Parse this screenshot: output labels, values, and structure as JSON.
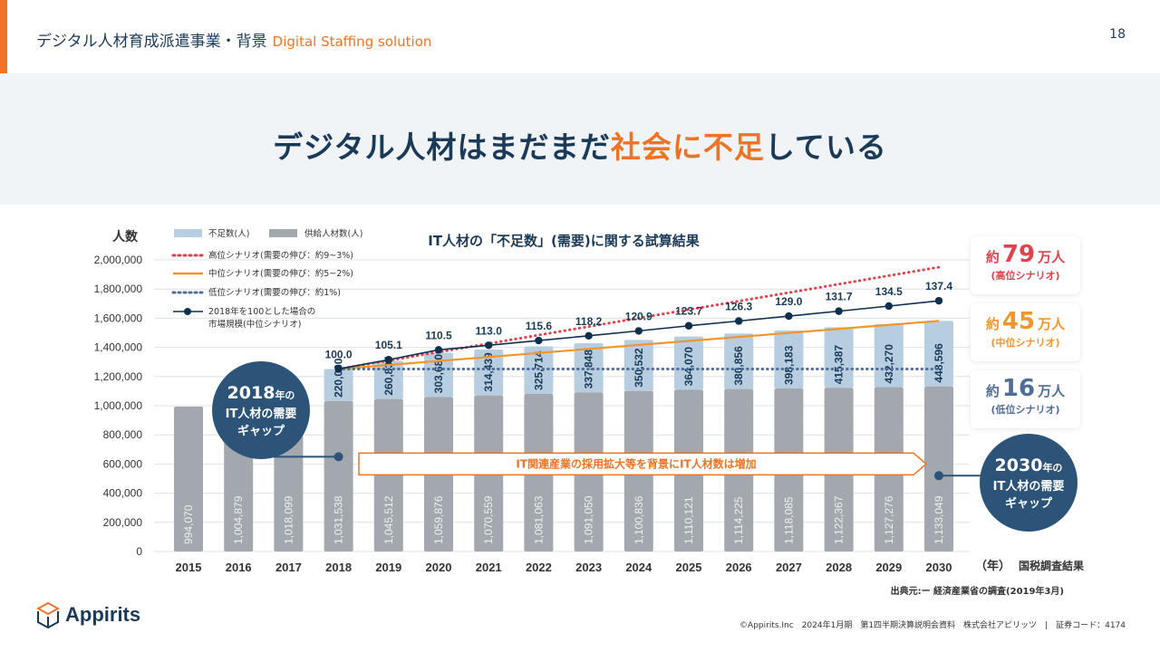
{
  "header": {
    "title_jp": "デジタル人材育成派遣事業・背景",
    "title_en": "Digital Staffing solution",
    "page_number": "18"
  },
  "headline": {
    "part1": "デジタル人材はまだまだ",
    "part2": "社会に不足",
    "part3": "している"
  },
  "colors": {
    "accent_orange": "#ed7424",
    "navy": "#1b3a57",
    "shortage_bar": "#b7cde0",
    "supply_bar": "#a2a8ae",
    "high_scenario": "#e0424c",
    "mid_scenario": "#f0962d",
    "low_scenario": "#4f6d96",
    "index_line": "#0f2f4f",
    "callout_bg": "#2c5478"
  },
  "chart_data": {
    "type": "bar",
    "title": "IT人材の「不足数」(需要)に関する試算結果",
    "ylabel": "人数",
    "xlabel": "（年）",
    "x_annotation": "国税調査結果",
    "ylim": [
      0,
      2000000
    ],
    "yticks": [
      "0",
      "200,000",
      "400,000",
      "600,000",
      "800,000",
      "1,000,000",
      "1,200,000",
      "1,400,000",
      "1,600,000",
      "1,800,000",
      "2,000,000"
    ],
    "ytick_values": [
      0,
      200000,
      400000,
      600000,
      800000,
      1000000,
      1200000,
      1400000,
      1600000,
      1800000,
      2000000
    ],
    "grid": true,
    "stacked": true,
    "categories": [
      "2015",
      "2016",
      "2017",
      "2018",
      "2019",
      "2020",
      "2021",
      "2022",
      "2023",
      "2024",
      "2025",
      "2026",
      "2027",
      "2028",
      "2029",
      "2030"
    ],
    "series": [
      {
        "name": "供給人材数(人)",
        "values": [
          994070,
          1004879,
          1018099,
          1031538,
          1045512,
          1059876,
          1070559,
          1081063,
          1091050,
          1100836,
          1110121,
          1114225,
          1118085,
          1122367,
          1127276,
          1133049
        ],
        "labels": [
          "994,070",
          "1,004,879",
          "1,018,099",
          "1,031,538",
          "1,045,512",
          "1,059,876",
          "1,070,559",
          "1,081,063",
          "1,091,050",
          "1,100,836",
          "1,110,121",
          "1,114,225",
          "1,118,085",
          "1,122,367",
          "1,127,276",
          "1,133,049"
        ]
      },
      {
        "name": "不足数(人)",
        "values": [
          null,
          null,
          null,
          220000,
          260835,
          303680,
          314439,
          325714,
          337848,
          350532,
          364070,
          380856,
          398183,
          415387,
          432270,
          448596
        ],
        "labels": [
          "",
          "",
          "",
          "220,000",
          "260,835",
          "303,680",
          "314,439",
          "325,714",
          "337,848",
          "350,532",
          "364,070",
          "380,856",
          "398,183",
          "415,387",
          "432,270",
          "448,596"
        ]
      }
    ],
    "lines": [
      {
        "name": "高位シナリオ(需要の伸び：約9~3%)",
        "style": "dotted",
        "start_year": "2018",
        "start_value": 1251538,
        "end_year": "2030",
        "end_value": 1950000
      },
      {
        "name": "中位シナリオ(需要の伸び：約5~2%)",
        "style": "solid",
        "start_year": "2018",
        "start_value": 1251538,
        "end_year": "2030",
        "end_value": 1581645
      },
      {
        "name": "低位シナリオ(需要の伸び：約1%)",
        "style": "dotted",
        "start_year": "2018",
        "start_value": 1251538,
        "end_year": "2030",
        "end_value": 1251538
      }
    ],
    "index_series": {
      "name": "2018年を100とした場合の市場規模(中位シナリオ)",
      "legend_line1": "2018年を100とした場合の",
      "legend_line2": "市場規模(中位シナリオ)",
      "x": [
        "2018",
        "2019",
        "2020",
        "2021",
        "2022",
        "2023",
        "2024",
        "2025",
        "2026",
        "2027",
        "2028",
        "2029",
        "2030"
      ],
      "values": [
        100.0,
        105.1,
        110.5,
        113.0,
        115.6,
        118.2,
        120.9,
        123.7,
        126.3,
        129.0,
        131.7,
        134.5,
        137.4
      ],
      "labels": [
        "100.0",
        "105.1",
        "110.5",
        "113.0",
        "115.6",
        "118.2",
        "120.9",
        "123.7",
        "126.3",
        "129.0",
        "131.7",
        "134.5",
        "137.4"
      ]
    },
    "legend": {
      "shortage": "不足数(人)",
      "supply": "供給人材数(人)",
      "high": "高位シナリオ(需要の伸び：約9~3%)",
      "mid": "中位シナリオ(需要の伸び：約5~2%)",
      "low": "低位シナリオ(需要の伸び：約1%)",
      "placement": "top-left"
    },
    "arrow_annotation": "IT関連産業の採用拡大等を背景にIT人材数は増加"
  },
  "scenarios": [
    {
      "prefix": "約",
      "number": "79",
      "unit": "万人",
      "label": "(高位シナリオ)",
      "color": "#e0424c"
    },
    {
      "prefix": "約",
      "number": "45",
      "unit": "万人",
      "label": "(中位シナリオ)",
      "color": "#f0962d"
    },
    {
      "prefix": "約",
      "number": "16",
      "unit": "万人",
      "label": "(低位シナリオ)",
      "color": "#4f6d96"
    }
  ],
  "callouts": {
    "left": {
      "year": "2018",
      "year_suffix": "年の",
      "line1": "IT人材の需要",
      "line2": "ギャップ"
    },
    "right": {
      "year": "2030",
      "year_suffix": "年の",
      "line1": "IT人材の需要",
      "line2": "ギャップ"
    }
  },
  "source": "出典元:ー 経済産業省の調査(2019年3月)",
  "logo_text": "Appirits",
  "footer": "©Appirits.Inc　2024年1月期　第1四半期決算説明会資料　株式会社アピリッツ　|　証券コード：4174"
}
